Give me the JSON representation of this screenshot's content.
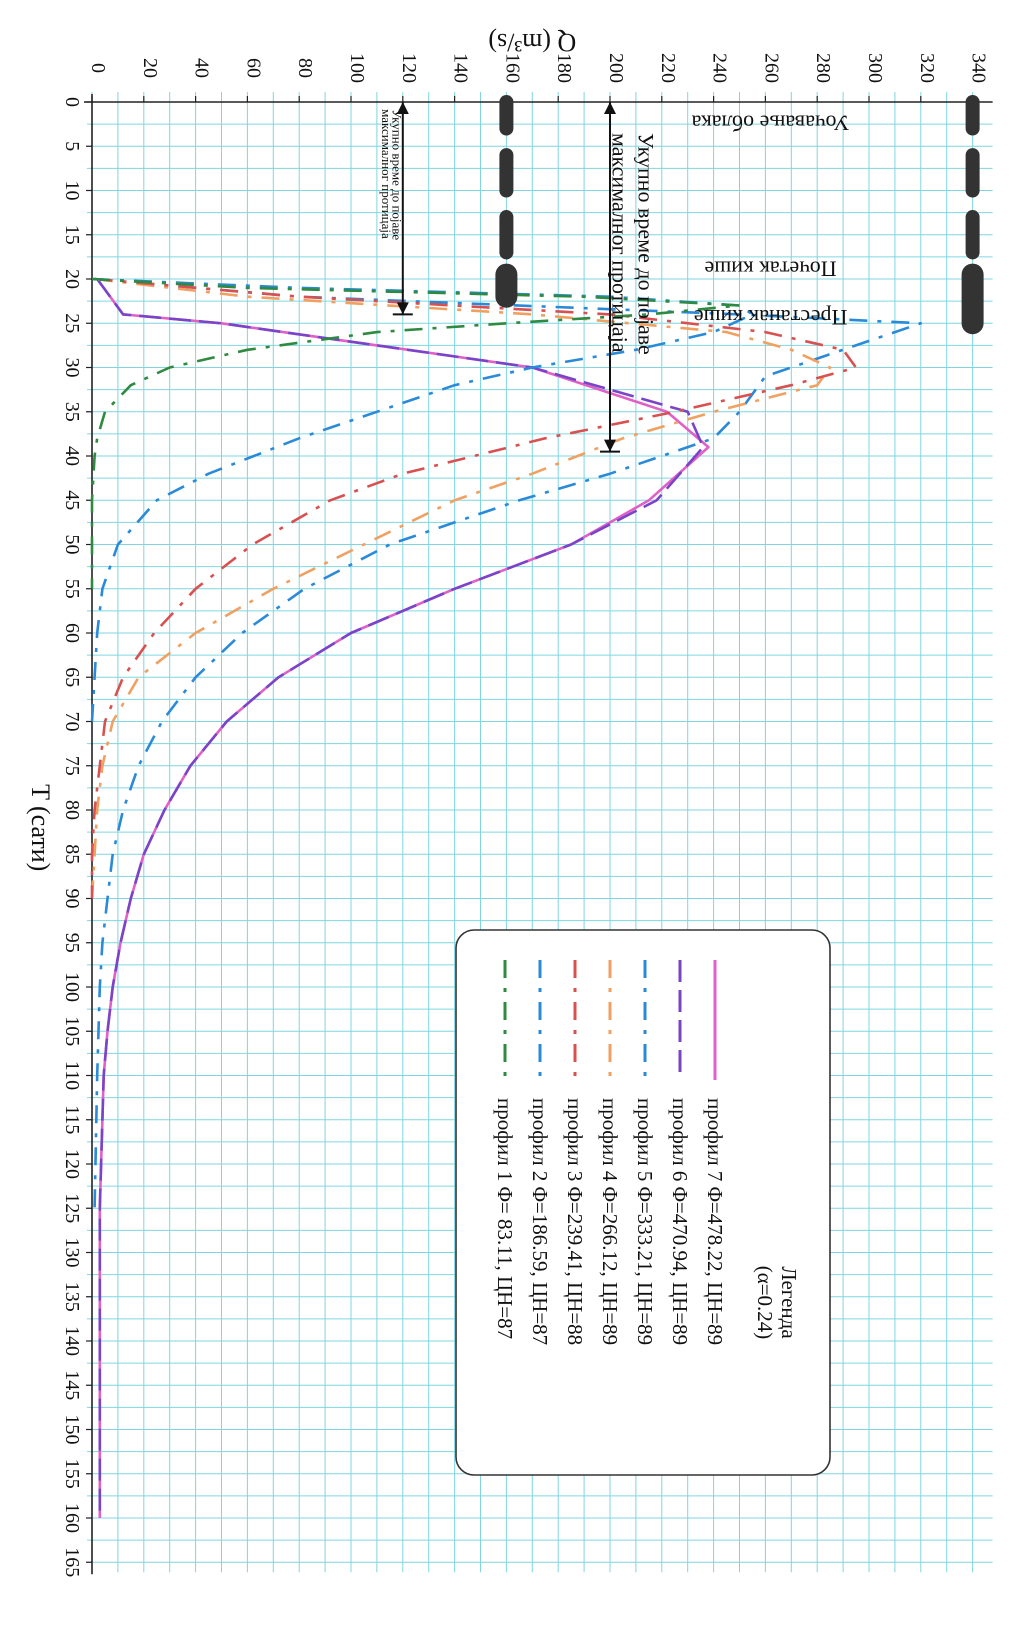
{
  "chart_data": {
    "type": "line",
    "xlabel": "T (сати)",
    "ylabel": "Q (m³/s)",
    "xlim": [
      0,
      165
    ],
    "ylim": [
      0,
      340
    ],
    "x_ticks": [
      0,
      5,
      10,
      15,
      20,
      25,
      30,
      35,
      40,
      45,
      50,
      55,
      60,
      65,
      70,
      75,
      80,
      85,
      90,
      95,
      100,
      105,
      110,
      115,
      120,
      125,
      130,
      135,
      140,
      145,
      150,
      155,
      160,
      165
    ],
    "y_ticks": [
      0,
      20,
      40,
      60,
      80,
      100,
      120,
      140,
      160,
      180,
      200,
      220,
      240,
      260,
      280,
      300,
      320,
      340
    ],
    "grid": true,
    "legend": {
      "title": "Легенда",
      "subtitle": "(α=0.24)",
      "placement": "lower-right"
    },
    "series": [
      {
        "name": "профил 7",
        "label": "профил 7  Φ=478.22, ЦН=89",
        "color": "#e060c8",
        "dash": "solid",
        "x": [
          20,
          24,
          25,
          30,
          35,
          39,
          45,
          50,
          55,
          60,
          65,
          70,
          75,
          80,
          85,
          90,
          95,
          100,
          105,
          110,
          115,
          120,
          125,
          130,
          140,
          150,
          160
        ],
        "y": [
          2,
          12,
          50,
          170,
          222,
          238,
          215,
          185,
          140,
          100,
          72,
          52,
          38,
          28,
          20,
          15,
          11,
          8,
          6,
          4.5,
          4,
          3.5,
          3,
          3,
          3,
          3,
          3
        ]
      },
      {
        "name": "профил 6",
        "label": "профил 6  Φ=470.94, ЦН=89",
        "color": "#7a44c8",
        "dash": "long",
        "x": [
          20,
          24,
          25,
          30,
          35,
          39,
          45,
          50,
          55,
          60,
          65,
          70,
          75,
          80,
          85,
          90,
          95,
          100,
          105,
          110,
          115,
          120,
          125,
          130,
          140,
          150,
          160
        ],
        "y": [
          2,
          12,
          50,
          170,
          230,
          236,
          218,
          185,
          140,
          100,
          72,
          52,
          38,
          28,
          20,
          15,
          11,
          8,
          6,
          4.5,
          4,
          3.5,
          3,
          3,
          3,
          3,
          3
        ]
      },
      {
        "name": "профил 5",
        "label": "профил 5  Φ=333.21, ЦН=89",
        "color": "#2a8ad8",
        "dash": "dashdot",
        "x": [
          20,
          22,
          24,
          25,
          27,
          31,
          35,
          38,
          42,
          45,
          50,
          55,
          60,
          65,
          70,
          75,
          80,
          85,
          90,
          95,
          100,
          110,
          125
        ],
        "y": [
          1,
          80,
          250,
          320,
          300,
          260,
          250,
          240,
          200,
          165,
          115,
          82,
          58,
          40,
          27,
          18,
          12,
          8,
          6,
          4,
          3,
          2,
          1
        ]
      },
      {
        "name": "профил 4",
        "label": "профил 4  Φ=266.12, ЦН=89",
        "color": "#f0a060",
        "dash": "dashdot",
        "x": [
          20,
          22,
          24,
          26,
          28,
          30,
          32,
          35,
          38,
          42,
          45,
          50,
          55,
          60,
          65,
          70,
          75,
          80,
          85,
          90
        ],
        "y": [
          1,
          60,
          170,
          245,
          270,
          285,
          280,
          240,
          205,
          170,
          140,
          105,
          70,
          40,
          18,
          8,
          4,
          2,
          1,
          0
        ]
      },
      {
        "name": "профил 3",
        "label": "профил 3  Φ=239.41, ЦН=88",
        "color": "#d85050",
        "dash": "dashdot",
        "x": [
          20,
          22,
          24,
          26,
          28,
          30,
          32,
          35,
          38,
          42,
          45,
          50,
          55,
          60,
          65,
          70,
          75,
          80,
          85,
          90
        ],
        "y": [
          1,
          80,
          200,
          260,
          290,
          295,
          270,
          225,
          175,
          120,
          92,
          62,
          40,
          24,
          12,
          5,
          3,
          1,
          0,
          0
        ]
      },
      {
        "name": "профил 2",
        "label": "профил 2  Φ=186.59, ЦН=87",
        "color": "#2a8ad8",
        "dash": "dashdot",
        "x": [
          20,
          21,
          22,
          23,
          24,
          26,
          28,
          30,
          32,
          35,
          38,
          42,
          45,
          50,
          55,
          60,
          65,
          70
        ],
        "y": [
          0,
          80,
          200,
          250,
          255,
          240,
          210,
          170,
          140,
          110,
          80,
          45,
          25,
          10,
          4,
          2,
          1,
          0
        ]
      },
      {
        "name": "профил 1",
        "label": "профил 1  Φ= 83.11, ЦН=87",
        "color": "#2e8a40",
        "dash": "dashdot",
        "x": [
          20,
          21,
          22,
          23,
          24,
          25,
          26,
          28,
          30,
          32,
          35,
          38,
          40,
          45,
          50,
          55
        ],
        "y": [
          0,
          60,
          190,
          250,
          215,
          160,
          110,
          60,
          30,
          15,
          5,
          2,
          1,
          0,
          0,
          0
        ]
      }
    ]
  },
  "annotations": {
    "cloud_observed": "Уочавање облака",
    "rain_start": "Почетак кише",
    "rain_end": "Престанак кише",
    "total_time_label_a": "Укупно време до појаве",
    "total_time_label_b": "максималног протицаја",
    "rain_bar_small_color": "#333333",
    "rain_bar_large_color": "#333333"
  }
}
